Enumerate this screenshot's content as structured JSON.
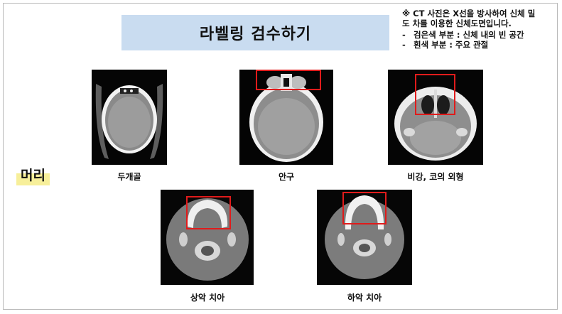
{
  "header": {
    "title": "라벨링 검수하기"
  },
  "note": {
    "heading": "※ CT 사진은 X선을 방사하여 신체 밀",
    "heading_cont": "도 차를 이용한 신체도면입니다.",
    "items": [
      {
        "text": "검은색 부분 : 신체 내의 빈 공간"
      },
      {
        "text": "흰색 부분 :  주요 관절"
      }
    ]
  },
  "section": {
    "label": "머리"
  },
  "images": [
    {
      "caption": "두개골"
    },
    {
      "caption": "안구"
    },
    {
      "caption": "비강, 코의 외형"
    },
    {
      "caption": "상악 치아"
    },
    {
      "caption": "하악 치아"
    }
  ],
  "colors": {
    "title_bg": "#c9dcf0",
    "roi": "#e01b1b",
    "highlight": "#f7ef9a"
  }
}
